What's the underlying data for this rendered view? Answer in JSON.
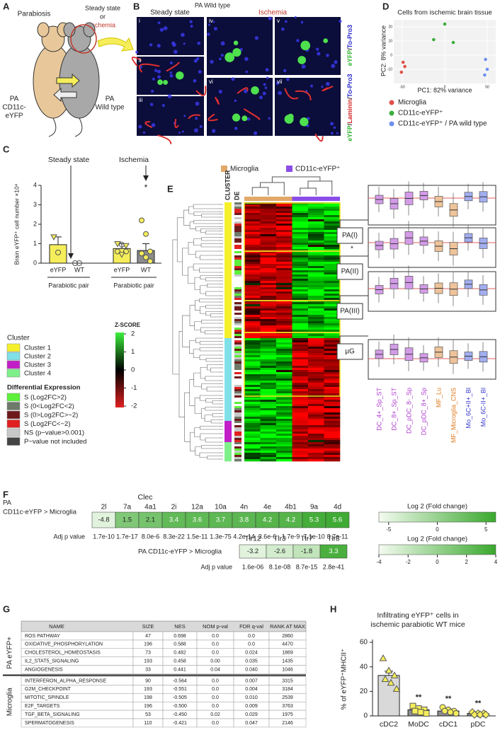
{
  "panel_labels": {
    "a": "A",
    "b": "B",
    "c": "C",
    "d": "D",
    "e": "E",
    "f": "F",
    "g": "G",
    "h": "H"
  },
  "panel_a": {
    "title": "Parabiosis",
    "condition_1": "Steady state",
    "condition_or": "or",
    "condition_2": "Ischemia",
    "left_mouse": [
      "PA",
      "CD11c-",
      "eYFP"
    ],
    "right_mouse": [
      "PA",
      "Wild type"
    ]
  },
  "panel_b": {
    "title": "PA Wild type",
    "column_1": "Steady state",
    "column_2": "Ischemia",
    "subpanels": [
      "i",
      "ii",
      "iii",
      "iv",
      "v",
      "vi",
      "vii"
    ],
    "stain_top": [
      {
        "text": "eYFP",
        "color": "#2fb52f"
      },
      {
        "text": "/",
        "color": "#222222"
      },
      {
        "text": "To-Pro3",
        "color": "#2b2bcc"
      }
    ],
    "stain_bottom": [
      {
        "text": "eYFP",
        "color": "#2fb52f"
      },
      {
        "text": "/",
        "color": "#222222"
      },
      {
        "text": "Laminin",
        "color": "#d42a2a"
      },
      {
        "text": "/",
        "color": "#222222"
      },
      {
        "text": "To-Pro3",
        "color": "#2b2bcc"
      }
    ]
  },
  "panel_c": {
    "type": "bar",
    "y_label": "Brain eYFP⁺ cell number ×10⁴",
    "categories": [
      "eYFP",
      "WT",
      "eYFP",
      "WT"
    ],
    "values": [
      0.95,
      0,
      0.75,
      0.65
    ],
    "errors": [
      0.4,
      0,
      0.25,
      0.35
    ],
    "colors": [
      "#f5ee5a",
      "#8c8c8c",
      "#f5ee5a",
      "#8c8c8c"
    ],
    "points": [
      [
        1.35,
        0.55
      ],
      [
        0,
        0
      ],
      [
        1.0,
        0.95,
        0.9,
        0.6,
        0.45,
        0.6
      ],
      [
        2.2,
        1.5,
        0.6,
        0.5,
        0.3,
        0.1
      ]
    ],
    "ylim": [
      0,
      4
    ],
    "yticks": [
      0,
      1,
      2,
      3,
      4
    ],
    "groups": [
      {
        "label": "Parabiotic pair",
        "condition": "Steady state"
      },
      {
        "label": "Parabiotic pair",
        "condition": "Ischemia"
      }
    ],
    "annotation": "*"
  },
  "panel_d": {
    "type": "scatter",
    "title": "Cells from ischemic brain tissue",
    "x_label": "PC1: 82% variance",
    "y_label": "PC2: 8% variance",
    "xlim": [
      -60,
      60
    ],
    "ylim": [
      -20,
      25
    ],
    "xticks": [
      -50,
      0,
      50
    ],
    "yticks": [
      -10,
      0,
      10,
      20
    ],
    "series": [
      {
        "name": "Microglia",
        "color": "#e0504a",
        "x": [
          -49,
          -47,
          -51
        ],
        "y": [
          -5,
          -8,
          -12
        ]
      },
      {
        "name": "CD11c-eYFP⁺",
        "color": "#3cae3c",
        "x": [
          -13,
          0,
          10
        ],
        "y": [
          11,
          22,
          9
        ]
      },
      {
        "name": "CD11c-eYFP⁺ / PA wild type",
        "color": "#6f8ff0",
        "x": [
          48,
          50,
          47
        ],
        "y": [
          -3,
          -10,
          -14
        ]
      }
    ]
  },
  "panel_e": {
    "group_legend": [
      {
        "name": "Microglia",
        "color": "#e0a86a"
      },
      {
        "name": "CD11c-eYFP⁺",
        "color": "#8a4de8"
      }
    ],
    "cluster_label": "CLUSTER",
    "de_label": "DE",
    "modules": [
      "PA(I)",
      "PA(II)",
      "PA(III)",
      "µG"
    ],
    "annotation": "*",
    "box_categories": [
      {
        "name": "DC_4+_Sp_ST",
        "color": "#d39be8",
        "label_color": "#b040d0"
      },
      {
        "name": "DC_8+_Sp_ST",
        "color": "#d39be8",
        "label_color": "#b040d0"
      },
      {
        "name": "DC_pDC_8-_Sp",
        "color": "#d39be8",
        "label_color": "#b040d0"
      },
      {
        "name": "DC_pDC_8+_Sp",
        "color": "#d39be8",
        "label_color": "#b040d0"
      },
      {
        "name": "MF_Lu",
        "color": "#eec39a",
        "label_color": "#e07a1c"
      },
      {
        "name": "MF_Microglia_CNS",
        "color": "#eec39a",
        "label_color": "#e07a1c"
      },
      {
        "name": "Mo_6C+II+_Bl",
        "color": "#a3aef0",
        "label_color": "#3a3ad0"
      },
      {
        "name": "Mo_6C-II+_Bl",
        "color": "#a3aef0",
        "label_color": "#3a3ad0"
      }
    ],
    "cluster_legend": {
      "title": "Cluster",
      "items": [
        {
          "name": "Cluster 1",
          "color": "#f5f02a"
        },
        {
          "name": "Cluster 2",
          "color": "#7fe0e8"
        },
        {
          "name": "Cluster 3",
          "color": "#c21ec8"
        },
        {
          "name": "Cluster 4",
          "color": "#7ef08a"
        }
      ]
    },
    "zscore": {
      "title": "Z-SCORE",
      "ticks": [
        2,
        1,
        0,
        -1,
        -2
      ]
    },
    "de_legend": {
      "title": "Differential Expression",
      "items": [
        {
          "name": "S (Log2FC>2)",
          "color": "#5cf03a"
        },
        {
          "name": "S (0<Log2FC<2)",
          "color": "#6e7a6a"
        },
        {
          "name": "S (0>Log2FC>−2)",
          "color": "#6e1a1a"
        },
        {
          "name": "S (Log2FC<−2)",
          "color": "#e02020"
        },
        {
          "name": "NS (p−value>0.001)",
          "color": "#c8c8c8"
        },
        {
          "name": "P−value not included",
          "color": "#444444"
        }
      ]
    }
  },
  "panel_f": {
    "clec": {
      "gene_family": "Clec",
      "row_label_1": "PA",
      "row_label_2": "CD11c-eYFP > Microglia",
      "genes": [
        "2l",
        "7a",
        "4a1",
        "2i",
        "12a",
        "10a",
        "4n",
        "4e",
        "4b1",
        "9a",
        "4d"
      ],
      "values": [
        -4.8,
        1.5,
        2.1,
        3.4,
        3.6,
        3.7,
        3.8,
        4.2,
        4.2,
        5.3,
        5.6
      ],
      "p_label": "Adj p value",
      "p_values": [
        "1.7e-10",
        "1.7e-17",
        "8.0e-6",
        "8.3e-22",
        "1.5e-11",
        "1.3e-75",
        "4.2e-14",
        "3.6e-6",
        "1.7e-9",
        "7.1e-10",
        "8.7e-11"
      ],
      "scale_title": "Log 2 (Fold change)",
      "scale_lim": [
        -6,
        6
      ],
      "scale_ticks": [
        -5,
        0,
        5
      ]
    },
    "tlr": {
      "row_label": "PA CD11c-eYFP  > Microglia",
      "genes": [
        "Tlr12",
        "Tlr3",
        "Tlr7",
        "Tlr8"
      ],
      "values": [
        -3.2,
        -2.6,
        -1.8,
        3.3
      ],
      "p_label": "Adj p value",
      "p_values": [
        "1.6e-06",
        "8.1e-08",
        "8.7e-15",
        "2.8e-41"
      ],
      "scale_title": "Log 2 (Fold change)",
      "scale_lim": [
        -4,
        4
      ],
      "scale_ticks": [
        -4,
        -2,
        0,
        2,
        4
      ]
    },
    "low_color": "#f4fbf0",
    "high_color": "#3aa82e"
  },
  "panel_g": {
    "columns": [
      "NAME",
      "SIZE",
      "NES",
      "NOM p-val",
      "FDR q-val",
      "RANK AT MAX"
    ],
    "groups": [
      {
        "label": "PA eYFP+",
        "rows": [
          [
            "ROS PATHWAY",
            "47",
            "0.698",
            "0.0",
            "0.0",
            "2860"
          ],
          [
            "OXIDATIVE_PHOSPHORYLATION",
            "196",
            "0.588",
            "0.0",
            "0.0",
            "4470"
          ],
          [
            "CHOLESTEROL_HOMEOSTASIS",
            "73",
            "0.482",
            "0.0",
            "0.024",
            "1869"
          ],
          [
            "IL2_STAT5_SIGNALING",
            "193",
            "0.458",
            "0.00",
            "0.035",
            "1435"
          ],
          [
            "ANGIOGENESIS",
            "33",
            "0.441",
            "0.04",
            "0.040",
            "1046"
          ]
        ]
      },
      {
        "label": "Microglia",
        "rows": [
          [
            "INTERFERON_ALPHA_RESPONSE",
            "90",
            "-0.564",
            "0.0",
            "0.007",
            "3315"
          ],
          [
            "G2M_CHECKPOINT",
            "193",
            "-0.551",
            "0.0",
            "0.004",
            "3184"
          ],
          [
            "MITOTIC_SPINDLE",
            "198",
            "-0.505",
            "0.0",
            "0.010",
            "2539"
          ],
          [
            "E2F_TARGETS",
            "196",
            "-0.500",
            "0.0",
            "0.009",
            "3763"
          ],
          [
            "TGF_BETA_SIGNALING",
            "53",
            "-0.450",
            "0.02",
            "0.029",
            "1975"
          ],
          [
            "SPERMATOGENESIS",
            "110",
            "-0.421",
            "0.0",
            "0.047",
            "2146"
          ]
        ]
      }
    ]
  },
  "panel_h": {
    "type": "bar",
    "title": [
      "Infiltrating eYFP⁺ cells in",
      "ischemic parabiotic WT mice"
    ],
    "y_label": "% of eYFP⁺MHCII⁺",
    "categories": [
      "cDC2",
      "MoDC",
      "cDC1",
      "pDC"
    ],
    "values": [
      33,
      5,
      4,
      2
    ],
    "errors": [
      3.5,
      1,
      1,
      0.5
    ],
    "colors": [
      "#d9d9d9",
      "#8c8c8c",
      "#8c8c8c",
      "#8c8c8c"
    ],
    "point_color": "#f5ee5a",
    "points": [
      [
        47,
        37,
        33,
        30,
        27,
        22
      ],
      [
        8,
        6,
        5,
        4,
        3,
        2
      ],
      [
        7,
        5,
        4,
        4,
        3,
        2
      ],
      [
        3,
        2,
        2,
        1,
        1,
        1
      ]
    ],
    "significance": [
      null,
      "**",
      "**",
      "**"
    ],
    "ylim": [
      0,
      60
    ],
    "yticks": [
      0,
      20,
      40,
      60
    ]
  }
}
